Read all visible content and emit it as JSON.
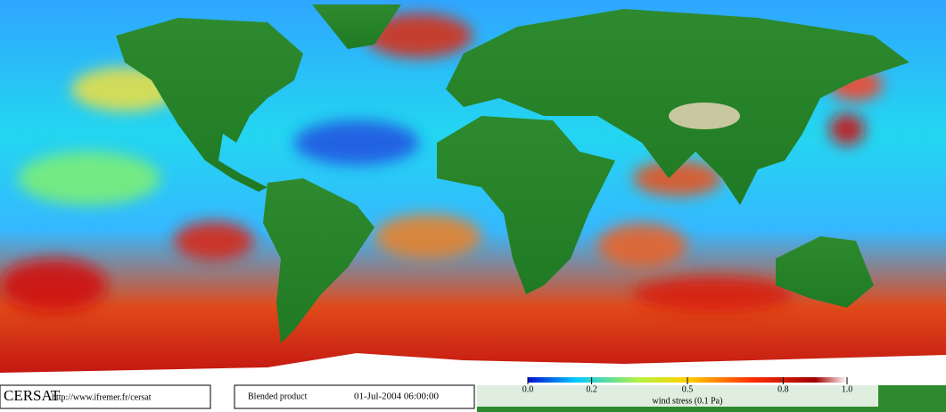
{
  "header": {
    "logo": "CERSAT",
    "url": "http://www.ifremer.fr/cersat"
  },
  "product": {
    "name": "Blended product",
    "datetime": "01-Jul-2004 06:00:00"
  },
  "colorbar": {
    "label": "wind stress (0.1 Pa)",
    "lim": [
      0,
      1
    ],
    "ticks": [
      {
        "value": 0,
        "label": "0.0"
      },
      0.2,
      0.5,
      0.8,
      {
        "value": 1,
        "label": "1.0"
      }
    ]
  }
}
